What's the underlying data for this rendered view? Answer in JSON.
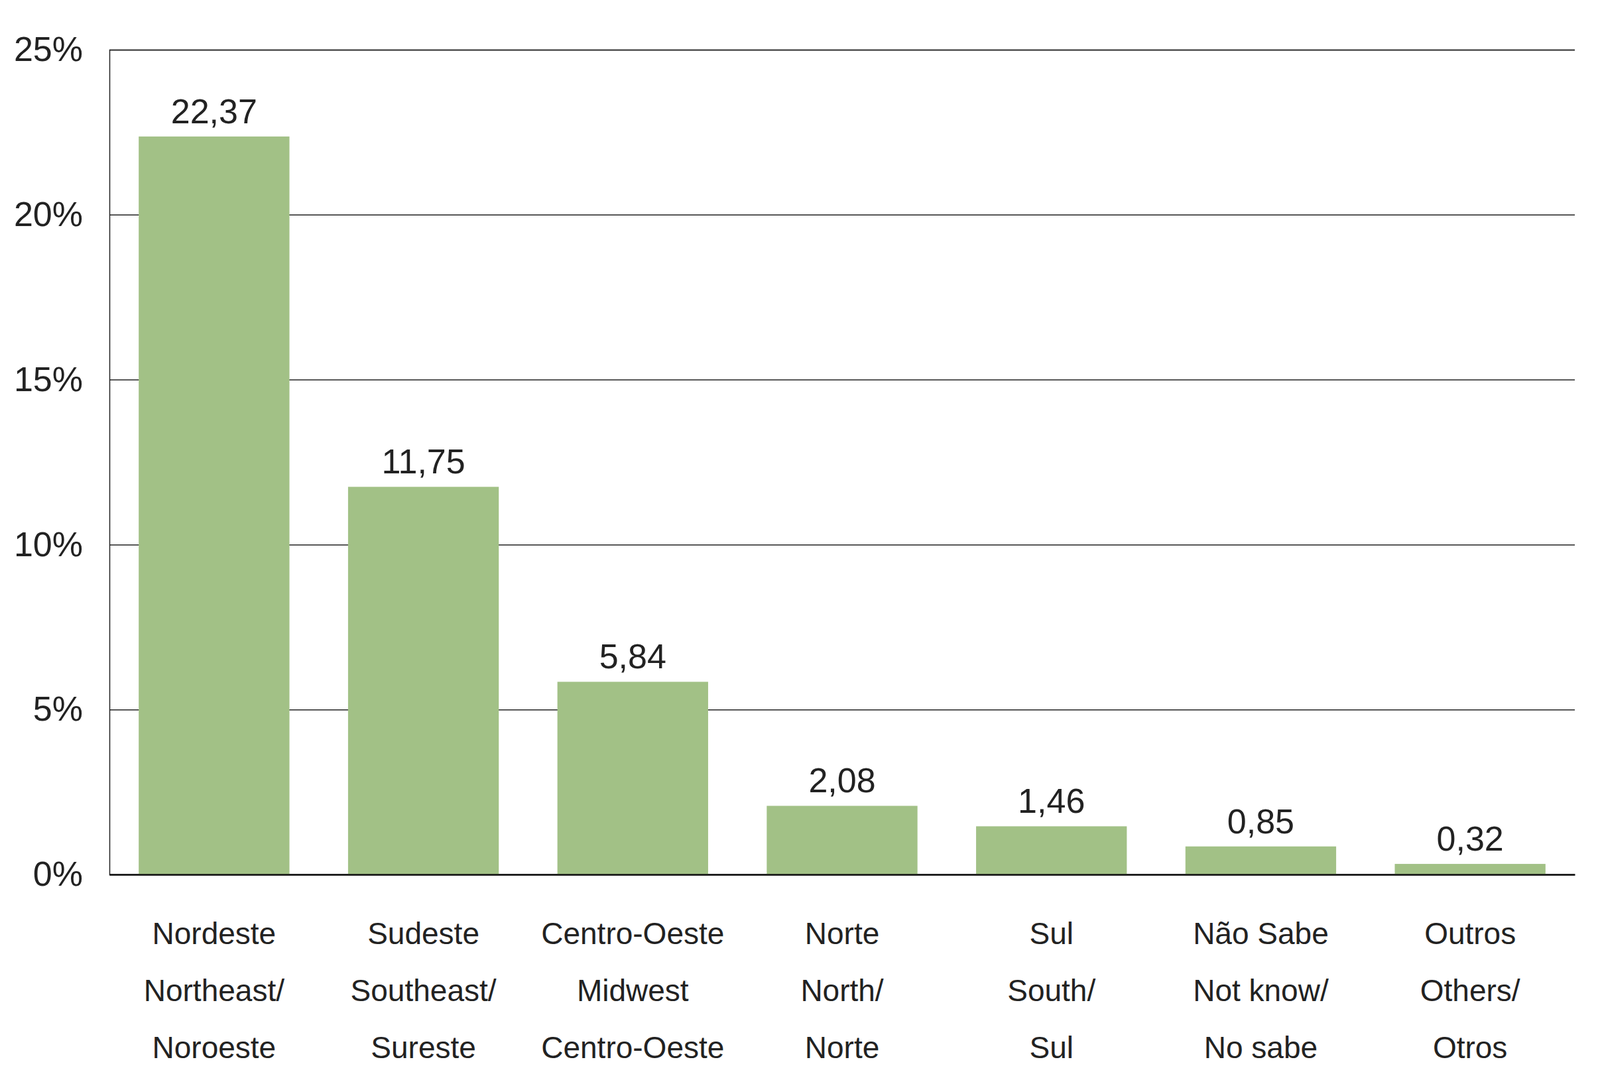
{
  "chart_data": {
    "type": "bar",
    "categories": [
      "Nordeste\nNortheast/\nNoroeste",
      "Sudeste\nSoutheast/\nSureste",
      "Centro-Oeste\nMidwest\nCentro-Oeste",
      "Norte\nNorth/\nNorte",
      "Sul\nSouth/\nSul",
      "Não Sabe\nNot know/\nNo sabe",
      "Outros\nOthers/\nOtros"
    ],
    "values": [
      22.37,
      11.75,
      5.84,
      2.08,
      1.46,
      0.85,
      0.32
    ],
    "value_labels": [
      "22,37",
      "11,75",
      "5,84",
      "2,08",
      "1,46",
      "0,85",
      "0,32"
    ],
    "color": "#a2c186",
    "ylim": [
      0,
      25
    ],
    "yticks": [
      {
        "value": 0,
        "label": "0%"
      },
      {
        "value": 5,
        "label": "5%"
      },
      {
        "value": 10,
        "label": "10%"
      },
      {
        "value": 15,
        "label": "15%"
      },
      {
        "value": 20,
        "label": "20%"
      },
      {
        "value": 25,
        "label": "25%"
      }
    ],
    "grid": true,
    "data_labels": true
  }
}
